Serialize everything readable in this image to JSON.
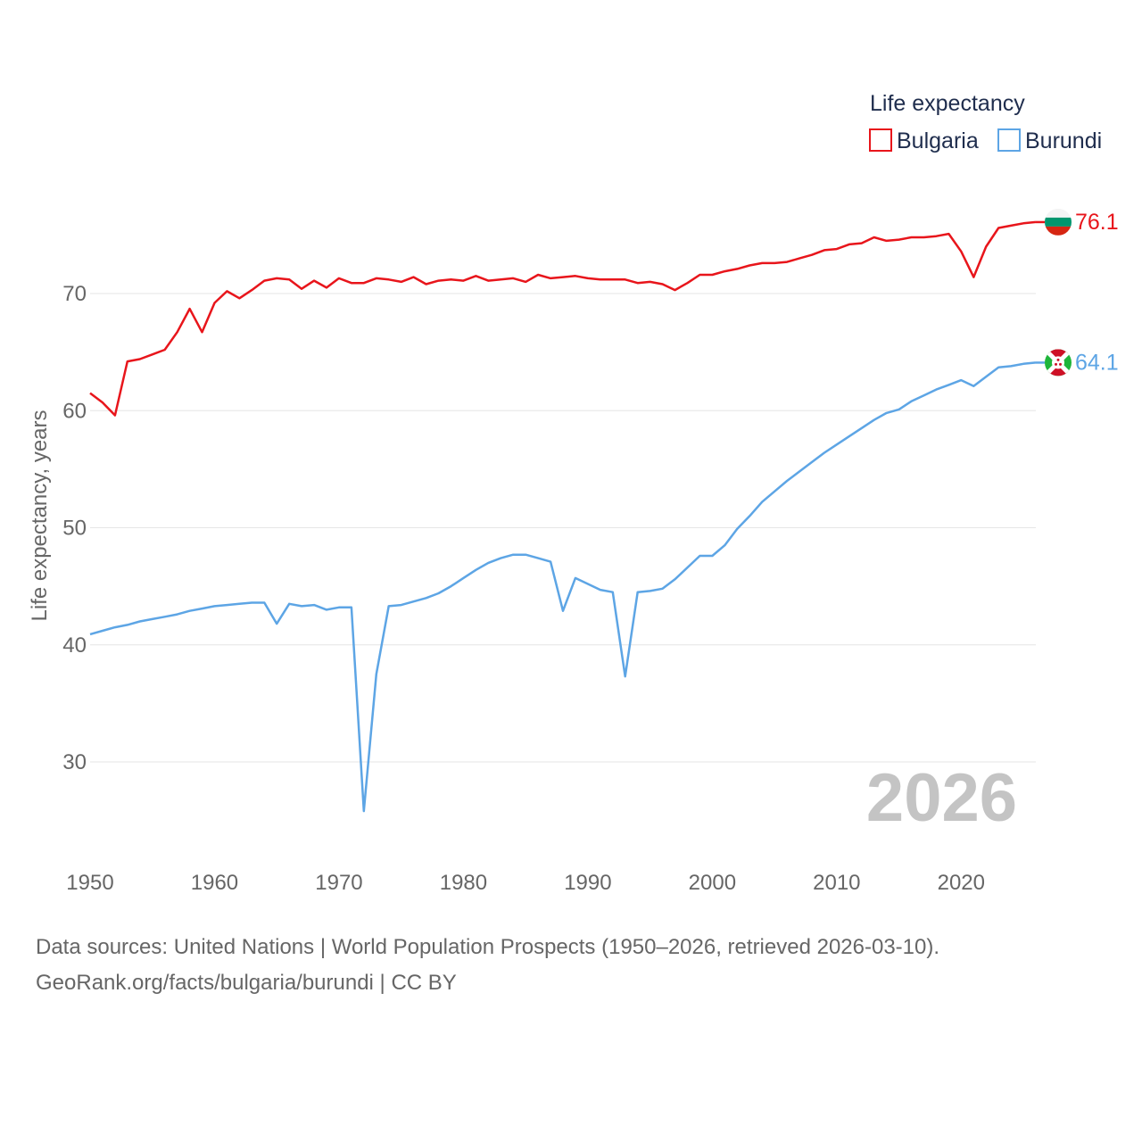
{
  "chart_data": {
    "type": "line",
    "ylabel": "Life expectancy, years",
    "xlabel": "",
    "ylim": [
      22,
      80
    ],
    "xlim": [
      1950,
      2026
    ],
    "grid": true,
    "yticks": [
      30,
      40,
      50,
      60,
      70
    ],
    "xticks": [
      1950,
      1960,
      1970,
      1980,
      1990,
      2000,
      2010,
      2020
    ],
    "legend_title": "Life expectancy",
    "legend_position": "top-right",
    "watermark_year": "2026",
    "x": [
      1950,
      1951,
      1952,
      1953,
      1954,
      1955,
      1956,
      1957,
      1958,
      1959,
      1960,
      1961,
      1962,
      1963,
      1964,
      1965,
      1966,
      1967,
      1968,
      1969,
      1970,
      1971,
      1972,
      1973,
      1974,
      1975,
      1976,
      1977,
      1978,
      1979,
      1980,
      1981,
      1982,
      1983,
      1984,
      1985,
      1986,
      1987,
      1988,
      1989,
      1990,
      1991,
      1992,
      1993,
      1994,
      1995,
      1996,
      1997,
      1998,
      1999,
      2000,
      2001,
      2002,
      2003,
      2004,
      2005,
      2006,
      2007,
      2008,
      2009,
      2010,
      2011,
      2012,
      2013,
      2014,
      2015,
      2016,
      2017,
      2018,
      2019,
      2020,
      2021,
      2022,
      2023,
      2024,
      2025,
      2026
    ],
    "series": [
      {
        "name": "Bulgaria",
        "color": "#e8151b",
        "end_label": "76.1",
        "values": [
          61.5,
          60.7,
          59.6,
          64.2,
          64.4,
          64.8,
          65.2,
          66.7,
          68.7,
          66.7,
          69.2,
          70.2,
          69.6,
          70.3,
          71.1,
          71.3,
          71.2,
          70.4,
          71.1,
          70.5,
          71.3,
          70.9,
          70.9,
          71.3,
          71.2,
          71.0,
          71.4,
          70.8,
          71.1,
          71.2,
          71.1,
          71.5,
          71.1,
          71.2,
          71.3,
          71.0,
          71.6,
          71.3,
          71.4,
          71.5,
          71.3,
          71.2,
          71.2,
          71.2,
          70.9,
          71.0,
          70.8,
          70.3,
          70.9,
          71.6,
          71.6,
          71.9,
          72.1,
          72.4,
          72.6,
          72.6,
          72.7,
          73.0,
          73.3,
          73.7,
          73.8,
          74.2,
          74.3,
          74.8,
          74.5,
          74.6,
          74.8,
          74.8,
          74.9,
          75.1,
          73.6,
          71.4,
          74.0,
          75.6,
          75.8,
          76.0,
          76.1
        ]
      },
      {
        "name": "Burundi",
        "color": "#5da5e5",
        "end_label": "64.1",
        "values": [
          40.9,
          41.2,
          41.5,
          41.7,
          42.0,
          42.2,
          42.4,
          42.6,
          42.9,
          43.1,
          43.3,
          43.4,
          43.5,
          43.6,
          43.6,
          41.8,
          43.5,
          43.3,
          43.4,
          43.0,
          43.2,
          43.2,
          25.8,
          37.5,
          43.3,
          43.4,
          43.7,
          44.0,
          44.4,
          45.0,
          45.7,
          46.4,
          47.0,
          47.4,
          47.7,
          47.7,
          47.4,
          47.1,
          42.9,
          45.7,
          45.2,
          44.7,
          44.5,
          37.3,
          44.5,
          44.6,
          44.8,
          45.6,
          46.6,
          47.6,
          47.6,
          48.5,
          49.9,
          51.0,
          52.2,
          53.1,
          54.0,
          54.8,
          55.6,
          56.4,
          57.1,
          57.8,
          58.5,
          59.2,
          59.8,
          60.1,
          60.8,
          61.3,
          61.8,
          62.2,
          62.6,
          62.1,
          62.9,
          63.7,
          63.8,
          64.0,
          64.1
        ]
      }
    ]
  },
  "footer": {
    "source_line": "Data sources: United Nations | World Population Prospects (1950–2026, retrieved 2026-03-10).",
    "attribution_line": "GeoRank.org/facts/bulgaria/burundi | CC BY"
  }
}
